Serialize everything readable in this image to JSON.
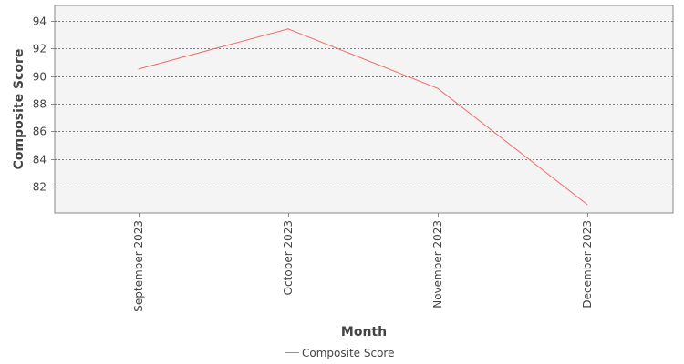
{
  "chart_data": {
    "type": "line",
    "title": "",
    "xlabel": "Month",
    "ylabel": "Composite Score",
    "categories": [
      "September 2023",
      "October 2023",
      "November 2023",
      "December 2023"
    ],
    "series": [
      {
        "name": "Composite Score",
        "values": [
          90.5,
          93.4,
          89.1,
          80.7
        ],
        "color": "#f26b6b"
      }
    ],
    "ylim": [
      80.1,
      95.1
    ],
    "yticks": [
      82,
      84,
      86,
      88,
      90,
      92,
      94
    ],
    "grid": true,
    "legend_position": "bottom"
  }
}
